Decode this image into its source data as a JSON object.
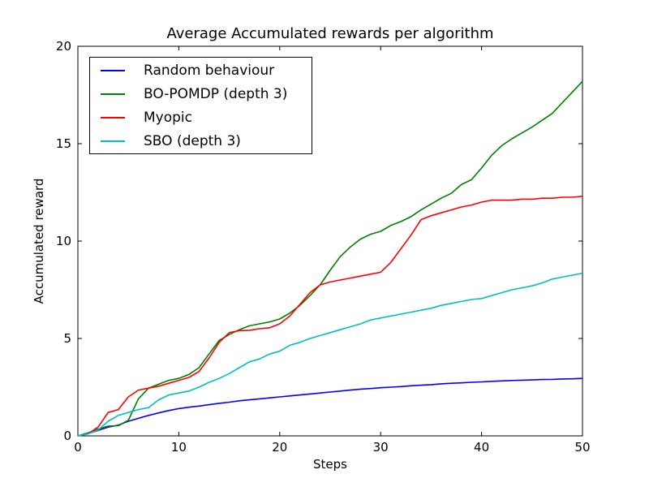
{
  "chart_data": {
    "type": "line",
    "title": "Average Accumulated rewards per algorithm",
    "xlabel": "Steps",
    "ylabel": "Accumulated reward",
    "xlim": [
      0,
      50
    ],
    "ylim": [
      0,
      20
    ],
    "xticks": [
      0,
      10,
      20,
      30,
      40,
      50
    ],
    "yticks": [
      0,
      5,
      10,
      15,
      20
    ],
    "grid": false,
    "legend_position": "upper left",
    "x": [
      0,
      1,
      2,
      3,
      4,
      5,
      6,
      7,
      8,
      9,
      10,
      11,
      12,
      13,
      14,
      15,
      16,
      17,
      18,
      19,
      20,
      21,
      22,
      23,
      24,
      25,
      26,
      27,
      28,
      29,
      30,
      31,
      32,
      33,
      34,
      35,
      36,
      37,
      38,
      39,
      40,
      41,
      42,
      43,
      44,
      45,
      46,
      47,
      48,
      49,
      50
    ],
    "series": [
      {
        "name": "Random behaviour",
        "color": "#0000ff",
        "values": [
          0,
          0.12,
          0.28,
          0.45,
          0.55,
          0.75,
          0.9,
          1.05,
          1.18,
          1.3,
          1.4,
          1.47,
          1.53,
          1.6,
          1.67,
          1.73,
          1.8,
          1.85,
          1.9,
          1.95,
          2.0,
          2.05,
          2.1,
          2.15,
          2.2,
          2.25,
          2.3,
          2.35,
          2.4,
          2.43,
          2.47,
          2.5,
          2.53,
          2.57,
          2.6,
          2.63,
          2.67,
          2.7,
          2.72,
          2.75,
          2.77,
          2.8,
          2.82,
          2.84,
          2.86,
          2.87,
          2.89,
          2.9,
          2.92,
          2.93,
          2.95
        ]
      },
      {
        "name": "BO-POMDP (depth 3)",
        "color": "#007f00",
        "values": [
          0,
          0.15,
          0.35,
          0.5,
          0.52,
          0.8,
          1.9,
          2.45,
          2.65,
          2.85,
          2.95,
          3.15,
          3.5,
          4.2,
          4.9,
          5.2,
          5.45,
          5.65,
          5.75,
          5.85,
          6.0,
          6.3,
          6.7,
          7.2,
          7.75,
          8.5,
          9.2,
          9.7,
          10.1,
          10.35,
          10.5,
          10.8,
          11.0,
          11.25,
          11.6,
          11.9,
          12.2,
          12.45,
          12.9,
          13.15,
          13.75,
          14.4,
          14.9,
          15.25,
          15.55,
          15.85,
          16.2,
          16.55,
          17.1,
          17.65,
          18.2
        ]
      },
      {
        "name": "Myopic",
        "color": "#ff0000",
        "values": [
          0,
          0.1,
          0.45,
          1.2,
          1.35,
          2.0,
          2.35,
          2.45,
          2.55,
          2.7,
          2.85,
          3.0,
          3.3,
          4.0,
          4.8,
          5.3,
          5.4,
          5.42,
          5.5,
          5.55,
          5.75,
          6.15,
          6.75,
          7.35,
          7.75,
          7.9,
          8.0,
          8.1,
          8.2,
          8.3,
          8.4,
          8.9,
          9.6,
          10.3,
          11.1,
          11.3,
          11.45,
          11.6,
          11.75,
          11.85,
          12.0,
          12.1,
          12.1,
          12.1,
          12.15,
          12.15,
          12.2,
          12.2,
          12.25,
          12.25,
          12.3
        ]
      },
      {
        "name": "SBO (depth 3)",
        "color": "#00bfbf",
        "values": [
          0,
          0.1,
          0.3,
          0.75,
          1.05,
          1.2,
          1.35,
          1.45,
          1.85,
          2.1,
          2.2,
          2.3,
          2.5,
          2.75,
          2.95,
          3.2,
          3.5,
          3.8,
          3.95,
          4.2,
          4.35,
          4.65,
          4.8,
          5.0,
          5.15,
          5.3,
          5.45,
          5.6,
          5.75,
          5.95,
          6.05,
          6.15,
          6.25,
          6.35,
          6.45,
          6.55,
          6.7,
          6.8,
          6.9,
          7.0,
          7.05,
          7.2,
          7.35,
          7.5,
          7.6,
          7.7,
          7.85,
          8.05,
          8.15,
          8.25,
          8.35
        ]
      }
    ]
  },
  "layout_colors": {
    "axes": "#000000",
    "background": "#ffffff"
  }
}
